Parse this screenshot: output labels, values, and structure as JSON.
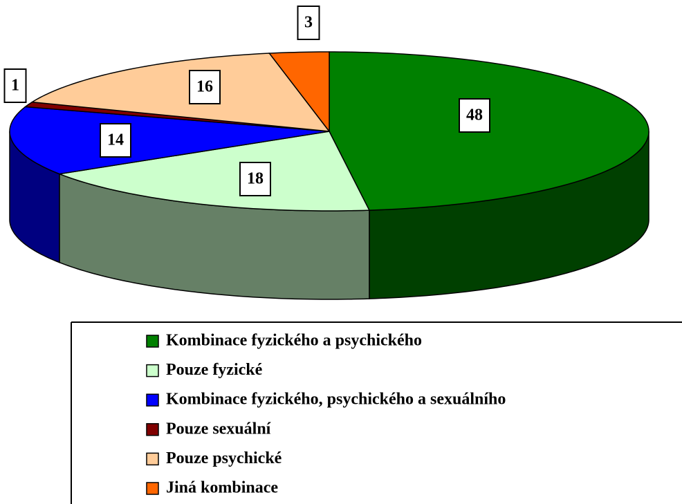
{
  "chart_data": {
    "type": "pie3d",
    "categories": [
      "Kombinace fyzického a psychického",
      "Pouze fyzické",
      "Kombinace fyzického, psychického a sexuálního",
      "Pouze sexuální",
      "Pouze psychické",
      "Jiná kombinace"
    ],
    "values": [
      48,
      18,
      14,
      1,
      16,
      3
    ],
    "colors": [
      "#008000",
      "#CCFFCC",
      "#0000FF",
      "#800000",
      "#FFCC99",
      "#FF6600"
    ]
  }
}
